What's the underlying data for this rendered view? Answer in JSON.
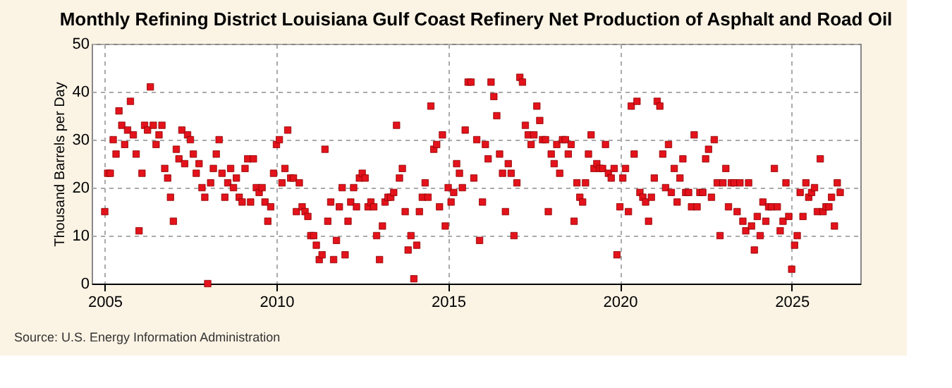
{
  "chart_data": {
    "type": "scatter",
    "title": "Monthly Refining District Louisiana Gulf Coast Refinery Net Production of Asphalt and Road Oil",
    "ylabel": "Thousand Barrels per Day",
    "annotations": [
      "Source: U.S. Energy Information Administration"
    ],
    "x": [
      "2005-01",
      "2005-02",
      "2005-03",
      "2005-04",
      "2005-05",
      "2005-06",
      "2005-07",
      "2005-08",
      "2005-09",
      "2005-10",
      "2005-11",
      "2005-12",
      "2006-01",
      "2006-02",
      "2006-03",
      "2006-04",
      "2006-05",
      "2006-06",
      "2006-07",
      "2006-08",
      "2006-09",
      "2006-10",
      "2006-11",
      "2006-12",
      "2007-01",
      "2007-02",
      "2007-03",
      "2007-04",
      "2007-05",
      "2007-06",
      "2007-07",
      "2007-08",
      "2007-09",
      "2007-10",
      "2007-11",
      "2007-12",
      "2008-01",
      "2008-02",
      "2008-03",
      "2008-04",
      "2008-05",
      "2008-06",
      "2008-07",
      "2008-08",
      "2008-09",
      "2008-10",
      "2008-11",
      "2008-12",
      "2009-01",
      "2009-02",
      "2009-03",
      "2009-04",
      "2009-05",
      "2009-06",
      "2009-07",
      "2009-08",
      "2009-09",
      "2009-10",
      "2009-11",
      "2009-12",
      "2010-01",
      "2010-02",
      "2010-03",
      "2010-04",
      "2010-05",
      "2010-06",
      "2010-07",
      "2010-08",
      "2010-09",
      "2010-10",
      "2010-11",
      "2010-12",
      "2011-01",
      "2011-02",
      "2011-03",
      "2011-04",
      "2011-05",
      "2011-06",
      "2011-07",
      "2011-08",
      "2011-09",
      "2011-10",
      "2011-11",
      "2011-12",
      "2012-01",
      "2012-02",
      "2012-03",
      "2012-04",
      "2012-05",
      "2012-06",
      "2012-07",
      "2012-08",
      "2012-09",
      "2012-10",
      "2012-11",
      "2012-12",
      "2013-01",
      "2013-02",
      "2013-03",
      "2013-04",
      "2013-05",
      "2013-06",
      "2013-07",
      "2013-08",
      "2013-09",
      "2013-10",
      "2013-11",
      "2013-12",
      "2014-01",
      "2014-02",
      "2014-03",
      "2014-04",
      "2014-05",
      "2014-06",
      "2014-07",
      "2014-08",
      "2014-09",
      "2014-10",
      "2014-11",
      "2014-12",
      "2015-01",
      "2015-02",
      "2015-03",
      "2015-04",
      "2015-05",
      "2015-06",
      "2015-07",
      "2015-08",
      "2015-09",
      "2015-10",
      "2015-11",
      "2015-12",
      "2016-01",
      "2016-02",
      "2016-03",
      "2016-04",
      "2016-05",
      "2016-06",
      "2016-07",
      "2016-08",
      "2016-09",
      "2016-10",
      "2016-11",
      "2016-12",
      "2017-01",
      "2017-02",
      "2017-03",
      "2017-04",
      "2017-05",
      "2017-06",
      "2017-07",
      "2017-08",
      "2017-09",
      "2017-10",
      "2017-11",
      "2017-12",
      "2018-01",
      "2018-02",
      "2018-03",
      "2018-04",
      "2018-05",
      "2018-06",
      "2018-07",
      "2018-08",
      "2018-09",
      "2018-10",
      "2018-11",
      "2018-12",
      "2019-01",
      "2019-02",
      "2019-03",
      "2019-04",
      "2019-05",
      "2019-06",
      "2019-07",
      "2019-08",
      "2019-09",
      "2019-10",
      "2019-11",
      "2019-12",
      "2020-01",
      "2020-02",
      "2020-03",
      "2020-04",
      "2020-05",
      "2020-06",
      "2020-07",
      "2020-08",
      "2020-09",
      "2020-10",
      "2020-11",
      "2020-12",
      "2021-01",
      "2021-02",
      "2021-03",
      "2021-04",
      "2021-05",
      "2021-06",
      "2021-07",
      "2021-08",
      "2021-09",
      "2021-10",
      "2021-11",
      "2021-12",
      "2022-01",
      "2022-02",
      "2022-03",
      "2022-04",
      "2022-05",
      "2022-06",
      "2022-07",
      "2022-08",
      "2022-09",
      "2022-10",
      "2022-11",
      "2022-12",
      "2023-01",
      "2023-02",
      "2023-03",
      "2023-04",
      "2023-05",
      "2023-06",
      "2023-07",
      "2023-08",
      "2023-09",
      "2023-10",
      "2023-11",
      "2023-12",
      "2024-01",
      "2024-02",
      "2024-03",
      "2024-04",
      "2024-05",
      "2024-06",
      "2024-07",
      "2024-08",
      "2024-09",
      "2024-10",
      "2024-11",
      "2024-12",
      "2025-01",
      "2025-02",
      "2025-03",
      "2025-04",
      "2025-05",
      "2025-06",
      "2025-07",
      "2025-08",
      "2025-09",
      "2025-10",
      "2025-11",
      "2025-12",
      "2026-01",
      "2026-02",
      "2026-03",
      "2026-04",
      "2026-05",
      "2026-06"
    ],
    "series": [
      {
        "color": "#e3121b",
        "values": [
          15,
          23,
          23,
          30,
          27,
          36,
          33,
          29,
          32,
          38,
          31,
          27,
          11,
          23,
          33,
          32,
          41,
          33,
          29,
          31,
          33,
          24,
          22,
          18,
          13,
          28,
          26,
          32,
          25,
          31,
          30,
          27,
          23,
          25,
          20,
          18,
          0,
          21,
          24,
          27,
          30,
          23,
          18,
          21,
          24,
          20,
          22,
          18,
          17,
          24,
          26,
          17,
          26,
          20,
          19,
          20,
          17,
          13,
          16,
          23,
          29,
          30,
          21,
          24,
          32,
          22,
          22,
          15,
          21,
          16,
          15,
          14,
          10,
          10,
          8,
          5,
          6,
          28,
          13,
          17,
          5,
          9,
          16,
          20,
          6,
          13,
          17,
          20,
          16,
          22,
          23,
          22,
          16,
          17,
          16,
          10,
          5,
          12,
          17,
          18,
          18,
          19,
          33,
          22,
          24,
          15,
          7,
          10,
          1,
          8,
          15,
          18,
          21,
          18,
          37,
          28,
          29,
          16,
          31,
          12,
          20,
          17,
          19,
          25,
          23,
          20,
          32,
          42,
          42,
          22,
          30,
          9,
          17,
          29,
          26,
          42,
          39,
          35,
          27,
          23,
          15,
          25,
          23,
          10,
          21,
          43,
          42,
          33,
          31,
          29,
          31,
          37,
          34,
          30,
          30,
          15,
          27,
          25,
          29,
          23,
          30,
          30,
          27,
          29,
          13,
          21,
          18,
          17,
          21,
          27,
          31,
          24,
          25,
          24,
          24,
          29,
          23,
          22,
          24,
          6,
          16,
          22,
          24,
          15,
          37,
          27,
          38,
          19,
          18,
          17,
          13,
          18,
          22,
          38,
          37,
          27,
          20,
          29,
          19,
          24,
          17,
          22,
          26,
          19,
          19,
          16,
          31,
          16,
          19,
          19,
          26,
          28,
          18,
          30,
          21,
          10,
          21,
          24,
          16,
          21,
          21,
          15,
          21,
          13,
          11,
          21,
          12,
          7,
          14,
          10,
          17,
          13,
          16,
          16,
          24,
          16,
          11,
          13,
          21,
          14,
          3,
          8,
          10,
          19,
          14,
          21,
          18,
          19,
          20,
          15,
          26,
          15,
          16,
          16,
          18,
          12,
          21,
          19
        ]
      }
    ],
    "xlim": [
      "2004-08-15",
      "2027-01-01"
    ],
    "xticks": [
      "2005",
      "2010",
      "2015",
      "2020",
      "2025"
    ],
    "ylim": [
      0,
      50
    ],
    "yticks": [
      0,
      10,
      20,
      30,
      40,
      50
    ],
    "grid": true,
    "marker": "square"
  }
}
